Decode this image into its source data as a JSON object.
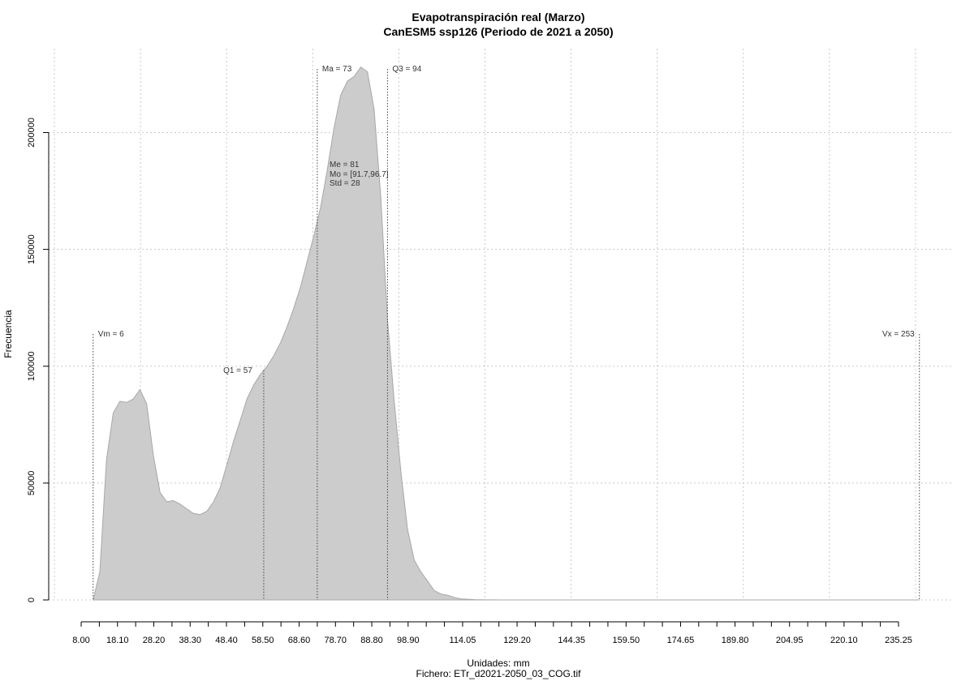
{
  "chart_data": {
    "type": "area",
    "title": "Evapotranspiración real (Marzo)",
    "subtitle": "CanESM5 ssp126 (Periodo de 2021 a 2050)",
    "xlabel": "Unidades: mm",
    "caption": "Fichero: ETr_d2021-2050_03_COG.tif",
    "ylabel": "Frecuencia",
    "xlim": [
      0,
      255
    ],
    "ylim": [
      0,
      230000
    ],
    "y_ticks": [
      0,
      50000,
      100000,
      150000,
      200000
    ],
    "y_tick_labels": [
      "0",
      "50000",
      "100000",
      "150000",
      "200000"
    ],
    "x_tick_labels": [
      "8.00",
      "18.10",
      "28.20",
      "38.30",
      "48.40",
      "58.50",
      "68.60",
      "78.70",
      "88.80",
      "98.90",
      "114.05",
      "129.20",
      "144.35",
      "159.50",
      "174.65",
      "189.80",
      "204.95",
      "220.10",
      "235.25"
    ],
    "x_tick_values": [
      8.0,
      18.1,
      28.2,
      38.3,
      48.4,
      58.5,
      68.6,
      78.7,
      88.8,
      98.9,
      114.05,
      129.2,
      144.35,
      159.5,
      174.65,
      189.8,
      204.95,
      220.1,
      235.25
    ],
    "x_minor_step": 5.05,
    "x_axis_range": [
      8.0,
      235.25
    ],
    "grid": true,
    "fill_color": "#cccccc",
    "x": [
      6,
      8,
      10,
      12,
      14,
      16,
      18,
      20,
      22,
      24,
      26,
      28,
      30,
      32,
      34,
      36,
      38,
      40,
      42,
      44,
      46,
      48,
      50,
      52,
      54,
      56,
      58,
      60,
      62,
      64,
      66,
      68,
      70,
      72,
      74,
      76,
      78,
      80,
      82,
      84,
      86,
      88,
      90,
      92,
      94,
      96,
      98,
      100,
      102,
      104,
      106,
      108,
      110,
      112,
      114,
      116,
      118,
      120,
      122,
      124,
      126,
      128,
      130,
      132,
      134,
      136,
      140,
      145,
      150,
      160,
      200,
      253
    ],
    "values": [
      0,
      12000,
      60000,
      80000,
      85000,
      84500,
      86000,
      90000,
      84000,
      62000,
      46000,
      42000,
      42500,
      41000,
      39000,
      37000,
      36500,
      38000,
      42000,
      48000,
      58000,
      68000,
      77000,
      86000,
      92000,
      96500,
      100000,
      104500,
      110000,
      117000,
      125000,
      134000,
      145000,
      156000,
      168000,
      184000,
      202000,
      216000,
      222000,
      224000,
      228000,
      226000,
      210000,
      172000,
      120000,
      85000,
      55000,
      30000,
      17000,
      12000,
      8000,
      4000,
      2500,
      2000,
      1000,
      400,
      300,
      150,
      80,
      40,
      20,
      10,
      5,
      0,
      0,
      0,
      0,
      0,
      0,
      0,
      0,
      0
    ],
    "markers": [
      {
        "label": "Vm = 6",
        "x": 6
      },
      {
        "label": "Q1 = 57",
        "x": 57
      },
      {
        "label": "Ma = 73",
        "x": 73
      },
      {
        "label": "Q3 = 94",
        "x": 94
      },
      {
        "label": "Vx = 253",
        "x": 253
      }
    ],
    "stats": {
      "me": "Me = 81",
      "mo": "Mo = [91.7,96.7]",
      "std": "Std = 28"
    }
  }
}
